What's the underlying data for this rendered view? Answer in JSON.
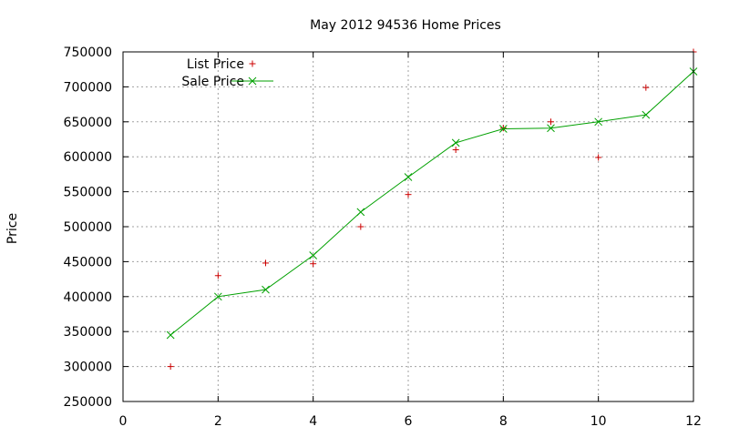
{
  "chart_data": {
    "type": "line",
    "title": "May 2012 94536 Home Prices",
    "xlabel": "",
    "ylabel": "Price",
    "xlim": [
      0,
      12
    ],
    "ylim": [
      250000,
      750000
    ],
    "xticks": [
      0,
      2,
      4,
      6,
      8,
      10,
      12
    ],
    "yticks": [
      250000,
      300000,
      350000,
      400000,
      450000,
      500000,
      550000,
      600000,
      650000,
      700000,
      750000
    ],
    "grid": true,
    "legend": "top-left",
    "series": [
      {
        "name": "List Price",
        "style": "points",
        "marker": "+",
        "color": "#cc0000",
        "x": [
          1,
          2,
          3,
          4,
          5,
          6,
          7,
          8,
          9,
          10,
          11,
          12
        ],
        "y": [
          300000,
          430000,
          448000,
          447000,
          500000,
          546000,
          610000,
          641000,
          650000,
          599000,
          699000,
          750000
        ]
      },
      {
        "name": "Sale Price",
        "style": "linespoints",
        "marker": "x",
        "color": "#00a000",
        "x": [
          1,
          2,
          3,
          4,
          5,
          6,
          7,
          8,
          9,
          10,
          11,
          12
        ],
        "y": [
          345000,
          400000,
          410000,
          459000,
          521000,
          571000,
          620000,
          640000,
          641000,
          650000,
          660000,
          722000
        ]
      }
    ]
  }
}
